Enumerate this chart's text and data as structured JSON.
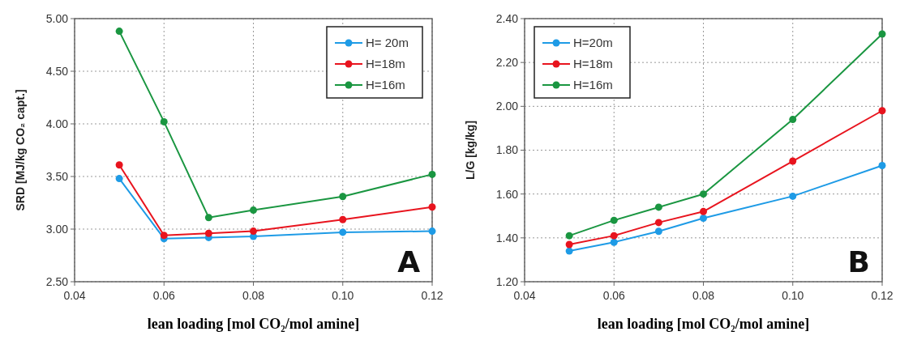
{
  "chart_data": [
    {
      "type": "line",
      "xlabel": "lean loading [mol CO₂/mol amine]",
      "ylabel": "SRD [MJ/kg CO₂ capt.]",
      "x": [
        0.05,
        0.06,
        0.07,
        0.08,
        0.1,
        0.12
      ],
      "series": [
        {
          "name": "H= 20m",
          "color": "#1e9be6",
          "values": [
            3.48,
            2.91,
            2.92,
            2.93,
            2.97,
            2.98
          ]
        },
        {
          "name": "H=18m",
          "color": "#e8141e",
          "values": [
            3.61,
            2.94,
            2.96,
            2.98,
            3.09,
            3.21
          ]
        },
        {
          "name": "H=16m",
          "color": "#1a9641",
          "values": [
            4.88,
            4.02,
            3.11,
            3.18,
            3.31,
            3.52
          ]
        }
      ],
      "xlim": [
        0.04,
        0.12
      ],
      "xticks": [
        0.04,
        0.06,
        0.08,
        {
          "value": 0.1,
          "label": "0.10"
        },
        0.12
      ],
      "ylim": [
        2.5,
        5
      ],
      "yticks": [
        {
          "value": 2.5,
          "label": "2.50"
        },
        {
          "value": 3,
          "label": "3.00"
        },
        {
          "value": 3.5,
          "label": "3.50"
        },
        {
          "value": 4,
          "label": "4.00"
        },
        {
          "value": 4.5,
          "label": "4.50"
        },
        {
          "value": 5,
          "label": "5.00"
        }
      ],
      "grid": true,
      "legend": "top right",
      "marker": "circle",
      "annotations": [
        "A"
      ]
    },
    {
      "type": "line",
      "xlabel": "lean loading [mol CO₂/mol amine]",
      "ylabel": "L/G [kg/kg]",
      "x": [
        0.05,
        0.06,
        0.07,
        0.08,
        0.1,
        0.12
      ],
      "series": [
        {
          "name": "H=20m",
          "color": "#1e9be6",
          "values": [
            1.34,
            1.38,
            1.43,
            1.49,
            1.59,
            1.73
          ]
        },
        {
          "name": "H=18m",
          "color": "#e8141e",
          "values": [
            1.37,
            1.41,
            1.47,
            1.52,
            1.75,
            1.98
          ]
        },
        {
          "name": "H=16m",
          "color": "#1a9641",
          "values": [
            1.41,
            1.48,
            1.54,
            1.6,
            1.94,
            2.33
          ]
        }
      ],
      "xlim": [
        0.04,
        0.12
      ],
      "xticks": [
        0.04,
        0.06,
        0.08,
        {
          "value": 0.1,
          "label": "0.10"
        },
        0.12
      ],
      "ylim": [
        1.2,
        2.4
      ],
      "yticks": [
        {
          "value": 1.2,
          "label": "1.20"
        },
        {
          "value": 1.4,
          "label": "1.40"
        },
        {
          "value": 1.6,
          "label": "1.60"
        },
        {
          "value": 1.8,
          "label": "1.80"
        },
        {
          "value": 2,
          "label": "2.00"
        },
        {
          "value": 2.2,
          "label": "2.20"
        },
        {
          "value": 2.4,
          "label": "2.40"
        }
      ],
      "grid": true,
      "legend": "top left",
      "marker": "circle",
      "annotations": [
        "B"
      ]
    }
  ]
}
